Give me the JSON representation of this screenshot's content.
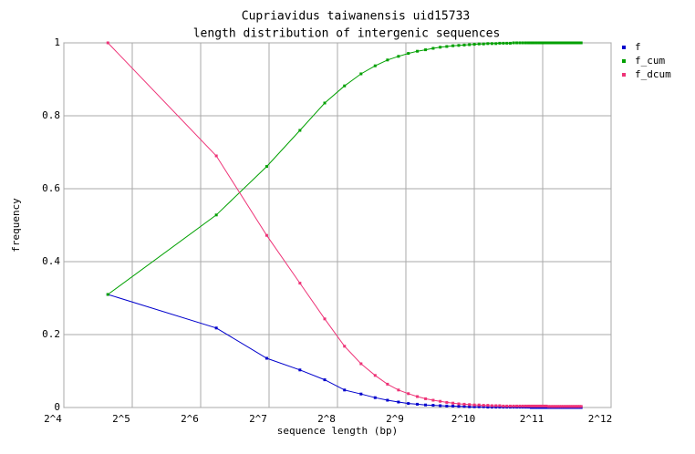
{
  "chart_data": {
    "type": "line",
    "title": "Cupriavidus taiwanensis uid15733",
    "subtitle": "length distribution of intergenic sequences",
    "xlabel": "sequence length (bp)",
    "ylabel": "frequency",
    "xscale": "log2",
    "grid": true,
    "legend": "right",
    "x": [
      25,
      75,
      125,
      175,
      225,
      275,
      325,
      375,
      425,
      475,
      525,
      575,
      625,
      675,
      725,
      775,
      825,
      875,
      925,
      975,
      1025,
      1075,
      1125,
      1175,
      1225,
      1275,
      1325,
      1375,
      1425,
      1475,
      1525,
      1575,
      1625,
      1675,
      1725,
      1775,
      1825,
      1875,
      1925,
      1975,
      2025,
      2075,
      2125,
      2175,
      2225,
      2275,
      2325,
      2375,
      2425,
      2475,
      2525,
      2575,
      2625,
      2675,
      2725,
      2775,
      2825,
      2875,
      2925,
      2975,
      3025
    ],
    "series": [
      {
        "name": "f",
        "color": "#0000cc",
        "values": [
          0.31,
          0.218,
          0.135,
          0.103,
          0.076,
          0.048,
          0.037,
          0.027,
          0.02,
          0.015,
          0.011,
          0.009,
          0.007,
          0.006,
          0.005,
          0.004,
          0.004,
          0.003,
          0.003,
          0.002,
          0.002,
          0.002,
          0.002,
          0.001,
          0.001,
          0.001,
          0.001,
          0.001,
          0.001,
          0.001,
          0.001,
          0.001,
          0.001,
          0.001,
          0.001,
          0.001,
          0,
          0,
          0,
          0,
          0,
          0,
          0,
          0,
          0,
          0,
          0,
          0,
          0,
          0,
          0,
          0,
          0,
          0,
          0,
          0,
          0,
          0,
          0,
          0,
          0
        ]
      },
      {
        "name": "f_cum",
        "color": "#00a000",
        "values": [
          0.31,
          0.528,
          0.661,
          0.76,
          0.835,
          0.882,
          0.915,
          0.937,
          0.953,
          0.963,
          0.971,
          0.977,
          0.981,
          0.985,
          0.988,
          0.99,
          0.992,
          0.993,
          0.994,
          0.995,
          0.996,
          0.997,
          0.997,
          0.998,
          0.998,
          0.998,
          0.999,
          0.999,
          0.999,
          0.999,
          1,
          1,
          1,
          1,
          1,
          1,
          1,
          1,
          1,
          1,
          1,
          1,
          1,
          1,
          1,
          1,
          1,
          1,
          1,
          1,
          1,
          1,
          1,
          1,
          1,
          1,
          1,
          1,
          1,
          1,
          1
        ]
      },
      {
        "name": "f_dcum",
        "color": "#ee3377",
        "values": [
          1,
          0.69,
          0.472,
          0.341,
          0.243,
          0.168,
          0.12,
          0.088,
          0.064,
          0.048,
          0.038,
          0.03,
          0.024,
          0.02,
          0.017,
          0.014,
          0.012,
          0.01,
          0.009,
          0.008,
          0.007,
          0.007,
          0.006,
          0.006,
          0.005,
          0.005,
          0.005,
          0.004,
          0.004,
          0.004,
          0.004,
          0.004,
          0.004,
          0.004,
          0.004,
          0.004,
          0.004,
          0.004,
          0.004,
          0.004,
          0.004,
          0.004,
          0.004,
          0.003,
          0.003,
          0.003,
          0.003,
          0.003,
          0.003,
          0.003,
          0.003,
          0.003,
          0.003,
          0.003,
          0.003,
          0.003,
          0.003,
          0.003,
          0.003,
          0.003,
          0.003
        ]
      }
    ],
    "xlim": [
      16,
      4096
    ],
    "xticks": [
      {
        "value": 16,
        "label": "2^4"
      },
      {
        "value": 32,
        "label": "2^5"
      },
      {
        "value": 64,
        "label": "2^6"
      },
      {
        "value": 128,
        "label": "2^7"
      },
      {
        "value": 256,
        "label": "2^8"
      },
      {
        "value": 512,
        "label": "2^9"
      },
      {
        "value": 1024,
        "label": "2^10"
      },
      {
        "value": 2048,
        "label": "2^11"
      },
      {
        "value": 4096,
        "label": "2^12"
      }
    ],
    "ylim": [
      0,
      1
    ],
    "yticks": [
      0,
      0.2,
      0.4,
      0.6,
      0.8,
      1
    ]
  }
}
